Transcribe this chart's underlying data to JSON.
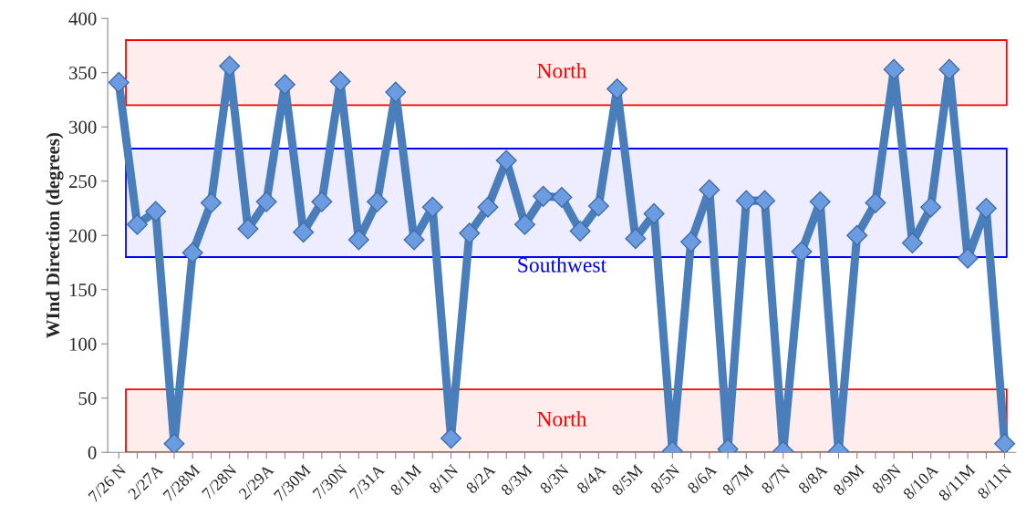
{
  "chart_data": {
    "type": "line",
    "ylabel": "WInd Direction (degrees)",
    "categories": [
      "7/26 N",
      null,
      "2/27A",
      null,
      "7/28M",
      null,
      "7/28N",
      null,
      "2/29A",
      null,
      "7/30M",
      null,
      "7/30N",
      null,
      "7/31A",
      null,
      "8/1M",
      null,
      "8/1N",
      null,
      "8/2A",
      null,
      "8/3M",
      null,
      "8/3N",
      null,
      "8/4A",
      null,
      "8/5M",
      null,
      "8/5N",
      null,
      "8/6A",
      null,
      "8/7M",
      null,
      "8/7N",
      null,
      "8/8A",
      null,
      "8/9M",
      null,
      "8/9N",
      null,
      "8/10A",
      null,
      "8/11M",
      null,
      "8/11N"
    ],
    "series": [
      {
        "color": "#4a7ebb",
        "values": [
          341,
          210,
          222,
          8,
          184,
          230,
          356,
          206,
          231,
          339,
          203,
          231,
          342,
          196,
          231,
          332,
          196,
          226,
          13,
          202,
          226,
          269,
          210,
          236,
          235,
          204,
          227,
          335,
          197,
          220,
          1,
          194,
          242,
          3,
          232,
          232,
          1,
          185,
          231,
          1,
          200,
          230,
          353,
          193,
          226,
          353,
          179,
          225,
          8
        ]
      }
    ],
    "ylim": [
      0,
      400
    ],
    "yticks": [
      0,
      50,
      100,
      150,
      200,
      250,
      300,
      350,
      400
    ],
    "marker": "diamond",
    "line_style": "solid",
    "grid": false,
    "legend": false,
    "bands": [
      {
        "axis": "y",
        "from": 320,
        "to": 380,
        "label": "North",
        "color": "#ff0000"
      },
      {
        "axis": "y",
        "from": 180,
        "to": 280,
        "label": "Southwest",
        "color": "#0000ff"
      },
      {
        "axis": "y",
        "from": 0,
        "to": 58,
        "label": "North",
        "color": "#ff0000"
      }
    ]
  }
}
